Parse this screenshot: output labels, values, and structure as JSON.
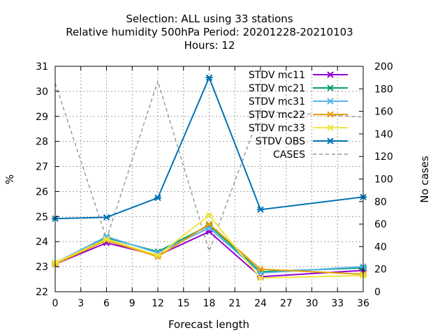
{
  "chart_data": {
    "type": "line",
    "title_lines": [
      "Selection: ALL using    33 stations",
      "Relative humidity 500hPa   Period: 20201228-20210103",
      "Hours:  12"
    ],
    "xlabel": "Forecast length",
    "ylabel": "%",
    "y2label": "No cases",
    "xlim": [
      0,
      36
    ],
    "ylim": [
      22,
      31
    ],
    "y2lim": [
      0,
      200
    ],
    "x_ticks": [
      0,
      3,
      6,
      9,
      12,
      15,
      18,
      21,
      24,
      27,
      30,
      33,
      36
    ],
    "y_ticks": [
      22,
      23,
      24,
      25,
      26,
      27,
      28,
      29,
      30,
      31
    ],
    "y2_ticks": [
      0,
      20,
      40,
      60,
      80,
      100,
      120,
      140,
      160,
      180,
      200
    ],
    "grid": true,
    "legend_position": "top-right",
    "series": [
      {
        "name": "STDV mc11",
        "color": "#9400d3",
        "axis": "y",
        "marker": "x",
        "x": [
          0,
          6,
          12,
          18,
          24,
          36
        ],
        "values": [
          23.1,
          23.95,
          23.45,
          24.4,
          22.6,
          22.85
        ]
      },
      {
        "name": "STDV mc21",
        "color": "#009e73",
        "axis": "y",
        "marker": "x",
        "x": [
          0,
          6,
          12,
          18,
          24,
          36
        ],
        "values": [
          23.1,
          24.15,
          23.6,
          24.65,
          22.8,
          22.95
        ]
      },
      {
        "name": "STDV mc31",
        "color": "#56b4e9",
        "axis": "y",
        "marker": "x",
        "x": [
          0,
          6,
          12,
          18,
          24,
          36
        ],
        "values": [
          23.15,
          24.2,
          23.55,
          24.55,
          22.75,
          23.0
        ]
      },
      {
        "name": "STDV mc22",
        "color": "#e69f00",
        "axis": "y",
        "marker": "x",
        "x": [
          0,
          6,
          12,
          18,
          24,
          36
        ],
        "values": [
          23.1,
          24.05,
          23.4,
          24.7,
          22.9,
          22.7
        ]
      },
      {
        "name": "STDV mc33",
        "color": "#f0e442",
        "axis": "y",
        "marker": "x",
        "x": [
          0,
          6,
          12,
          18,
          24,
          36
        ],
        "values": [
          23.15,
          24.1,
          23.45,
          25.05,
          22.55,
          22.65
        ]
      },
      {
        "name": "STDV OBS",
        "color": "#0072b2",
        "axis": "y",
        "marker": "x",
        "x": [
          0,
          6,
          12,
          18,
          24,
          36
        ],
        "values": [
          24.92,
          24.97,
          25.75,
          30.55,
          25.28,
          25.78
        ]
      },
      {
        "name": "CASES",
        "color": "#999999",
        "axis": "y2",
        "dashed": true,
        "x": [
          0,
          6,
          12,
          18,
          24,
          36
        ],
        "values": [
          185,
          47,
          187,
          36,
          160,
          155
        ]
      }
    ]
  }
}
